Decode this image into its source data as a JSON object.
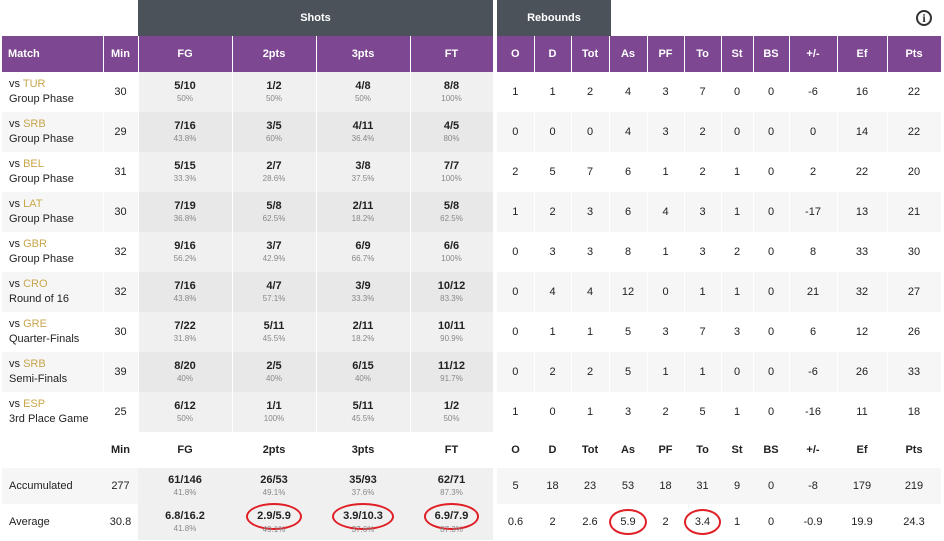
{
  "groups": {
    "shots": "Shots",
    "rebounds": "Rebounds"
  },
  "info_icon": "i",
  "headers_left": [
    "Match",
    "Min",
    "FG",
    "2pts",
    "3pts",
    "FT"
  ],
  "headers_right": [
    "O",
    "D",
    "Tot",
    "As",
    "PF",
    "To",
    "St",
    "BS",
    "+/-",
    "Ef",
    "Pts"
  ],
  "matches": [
    {
      "opp": "TUR",
      "phase": "Group Phase",
      "min": "30",
      "fg": "5/10",
      "fgp": "50%",
      "p2": "1/2",
      "p2p": "50%",
      "p3": "4/8",
      "p3p": "50%",
      "ft": "8/8",
      "ftp": "100%",
      "o": "1",
      "d": "1",
      "tot": "2",
      "as": "4",
      "pf": "3",
      "to": "7",
      "st": "0",
      "bs": "0",
      "pm": "-6",
      "ef": "16",
      "pts": "22"
    },
    {
      "opp": "SRB",
      "phase": "Group Phase",
      "min": "29",
      "fg": "7/16",
      "fgp": "43.8%",
      "p2": "3/5",
      "p2p": "60%",
      "p3": "4/11",
      "p3p": "36.4%",
      "ft": "4/5",
      "ftp": "80%",
      "o": "0",
      "d": "0",
      "tot": "0",
      "as": "4",
      "pf": "3",
      "to": "2",
      "st": "0",
      "bs": "0",
      "pm": "0",
      "ef": "14",
      "pts": "22"
    },
    {
      "opp": "BEL",
      "phase": "Group Phase",
      "min": "31",
      "fg": "5/15",
      "fgp": "33.3%",
      "p2": "2/7",
      "p2p": "28.6%",
      "p3": "3/8",
      "p3p": "37.5%",
      "ft": "7/7",
      "ftp": "100%",
      "o": "2",
      "d": "5",
      "tot": "7",
      "as": "6",
      "pf": "1",
      "to": "2",
      "st": "1",
      "bs": "0",
      "pm": "2",
      "ef": "22",
      "pts": "20"
    },
    {
      "opp": "LAT",
      "phase": "Group Phase",
      "min": "30",
      "fg": "7/19",
      "fgp": "36.8%",
      "p2": "5/8",
      "p2p": "62.5%",
      "p3": "2/11",
      "p3p": "18.2%",
      "ft": "5/8",
      "ftp": "62.5%",
      "o": "1",
      "d": "2",
      "tot": "3",
      "as": "6",
      "pf": "4",
      "to": "3",
      "st": "1",
      "bs": "0",
      "pm": "-17",
      "ef": "13",
      "pts": "21"
    },
    {
      "opp": "GBR",
      "phase": "Group Phase",
      "min": "32",
      "fg": "9/16",
      "fgp": "56.2%",
      "p2": "3/7",
      "p2p": "42.9%",
      "p3": "6/9",
      "p3p": "66.7%",
      "ft": "6/6",
      "ftp": "100%",
      "o": "0",
      "d": "3",
      "tot": "3",
      "as": "8",
      "pf": "1",
      "to": "3",
      "st": "2",
      "bs": "0",
      "pm": "8",
      "ef": "33",
      "pts": "30"
    },
    {
      "opp": "CRO",
      "phase": "Round of 16",
      "min": "32",
      "fg": "7/16",
      "fgp": "43.8%",
      "p2": "4/7",
      "p2p": "57.1%",
      "p3": "3/9",
      "p3p": "33.3%",
      "ft": "10/12",
      "ftp": "83.3%",
      "o": "0",
      "d": "4",
      "tot": "4",
      "as": "12",
      "pf": "0",
      "to": "1",
      "st": "1",
      "bs": "0",
      "pm": "21",
      "ef": "32",
      "pts": "27"
    },
    {
      "opp": "GRE",
      "phase": "Quarter-Finals",
      "min": "30",
      "fg": "7/22",
      "fgp": "31.8%",
      "p2": "5/11",
      "p2p": "45.5%",
      "p3": "2/11",
      "p3p": "18.2%",
      "ft": "10/11",
      "ftp": "90.9%",
      "o": "0",
      "d": "1",
      "tot": "1",
      "as": "5",
      "pf": "3",
      "to": "7",
      "st": "3",
      "bs": "0",
      "pm": "6",
      "ef": "12",
      "pts": "26"
    },
    {
      "opp": "SRB",
      "phase": "Semi-Finals",
      "min": "39",
      "fg": "8/20",
      "fgp": "40%",
      "p2": "2/5",
      "p2p": "40%",
      "p3": "6/15",
      "p3p": "40%",
      "ft": "11/12",
      "ftp": "91.7%",
      "o": "0",
      "d": "2",
      "tot": "2",
      "as": "5",
      "pf": "1",
      "to": "1",
      "st": "0",
      "bs": "0",
      "pm": "-6",
      "ef": "26",
      "pts": "33"
    },
    {
      "opp": "ESP",
      "phase": "3rd Place Game",
      "min": "25",
      "fg": "6/12",
      "fgp": "50%",
      "p2": "1/1",
      "p2p": "100%",
      "p3": "5/11",
      "p3p": "45.5%",
      "ft": "1/2",
      "ftp": "50%",
      "o": "1",
      "d": "0",
      "tot": "1",
      "as": "3",
      "pf": "2",
      "to": "5",
      "st": "1",
      "bs": "0",
      "pm": "-16",
      "ef": "11",
      "pts": "18"
    }
  ],
  "sub_headers_left": [
    "",
    "Min",
    "FG",
    "2pts",
    "3pts",
    "FT"
  ],
  "sub_headers_right": [
    "O",
    "D",
    "Tot",
    "As",
    "PF",
    "To",
    "St",
    "BS",
    "+/-",
    "Ef",
    "Pts"
  ],
  "accumulated": {
    "label": "Accumulated",
    "min": "277",
    "fg": "61/146",
    "fgp": "41.8%",
    "p2": "26/53",
    "p2p": "49.1%",
    "p3": "35/93",
    "p3p": "37.6%",
    "ft": "62/71",
    "ftp": "87.3%",
    "o": "5",
    "d": "18",
    "tot": "23",
    "as": "53",
    "pf": "18",
    "to": "31",
    "st": "9",
    "bs": "0",
    "pm": "-8",
    "ef": "179",
    "pts": "219"
  },
  "average": {
    "label": "Average",
    "min": "30.8",
    "fg": "6.8/16.2",
    "fgp": "41.8%",
    "p2": "2.9/5.9",
    "p2p": "49.1%",
    "p3": "3.9/10.3",
    "p3p": "37.6%",
    "ft": "6.9/7.9",
    "ftp": "87.3%",
    "o": "0.6",
    "d": "2",
    "tot": "2.6",
    "as": "5.9",
    "pf": "2",
    "to": "3.4",
    "st": "1",
    "bs": "0",
    "pm": "-0.9",
    "ef": "19.9",
    "pts": "24.3"
  },
  "colors": {
    "header": "#7d4792",
    "group": "#4b5259",
    "opponent": "#c8a64a",
    "highlight": "#e01e25"
  }
}
